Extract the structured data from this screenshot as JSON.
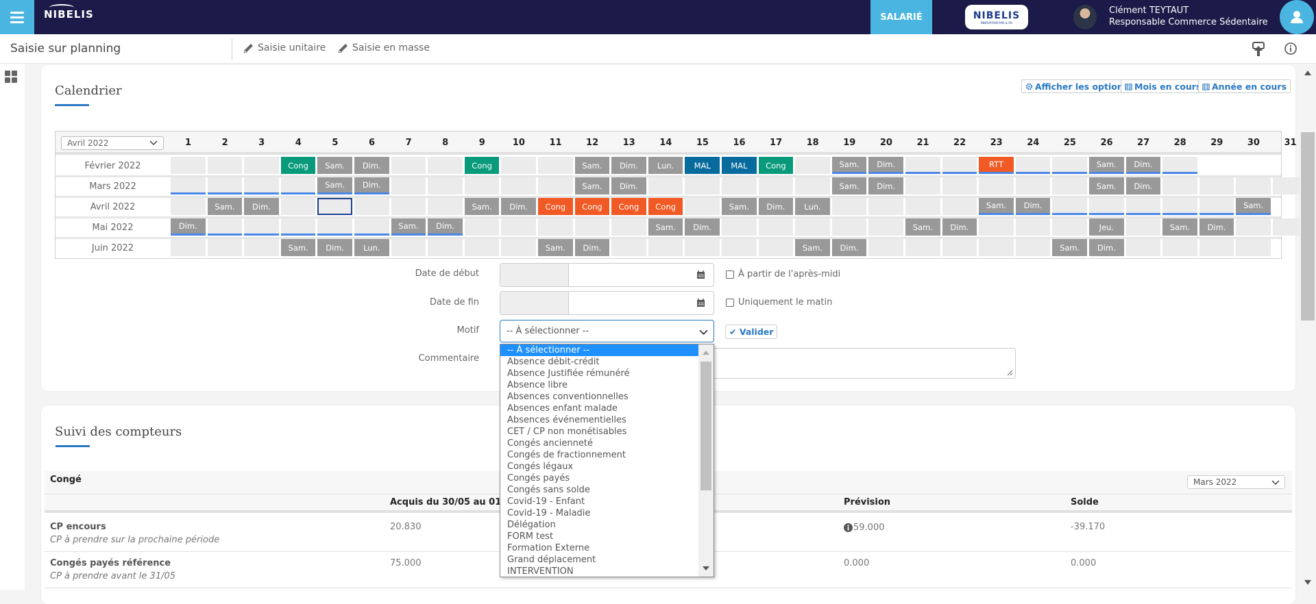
{
  "header": {
    "logo": "NIBELIS",
    "role_button": "SALARIÉ",
    "brand_logo": "NIBELIS",
    "brand_tagline": "INNOVATION PAIE & RH",
    "user_name": "Clément TEYTAUT",
    "user_title": "Responsable Commerce Sédentaire"
  },
  "subbar": {
    "title": "Saisie sur planning",
    "saisie_unitaire": "Saisie unitaire",
    "saisie_masse": "Saisie en masse"
  },
  "calendar": {
    "title": "Calendrier",
    "buttons": {
      "options": "Afficher les options",
      "month": "Mois en cours",
      "year": "Année en cours"
    },
    "month_select": "Avril 2022",
    "days": [
      "1",
      "2",
      "3",
      "4",
      "5",
      "6",
      "7",
      "8",
      "9",
      "10",
      "11",
      "12",
      "13",
      "14",
      "15",
      "16",
      "17",
      "18",
      "19",
      "20",
      "21",
      "22",
      "23",
      "24",
      "25",
      "26",
      "27",
      "28",
      "29",
      "30",
      "31"
    ],
    "colors": {
      "weekend": "#999999",
      "cong_green": "#089a7a",
      "cong_orange": "#f15a24",
      "mal": "#086b9e",
      "underline": "#4a86e8",
      "selected": "#1d3f8f"
    },
    "rows": [
      {
        "label": "Février 2022",
        "days": 28,
        "cells": {
          "4": {
            "t": "Cong",
            "c": "cong-green"
          },
          "5": {
            "t": "Sam.",
            "c": "we"
          },
          "6": {
            "t": "Dim.",
            "c": "we"
          },
          "9": {
            "t": "Cong",
            "c": "cong-green"
          },
          "12": {
            "t": "Sam.",
            "c": "we"
          },
          "13": {
            "t": "Dim.",
            "c": "we"
          },
          "14": {
            "t": "Lun.",
            "c": "we"
          },
          "15": {
            "t": "MAL",
            "c": "mal"
          },
          "16": {
            "t": "MAL",
            "c": "mal"
          },
          "17": {
            "t": "Cong",
            "c": "cong-green"
          },
          "19": {
            "t": "Sam.",
            "c": "we"
          },
          "20": {
            "t": "Dim.",
            "c": "we"
          },
          "23": {
            "t": "RTT",
            "c": "cong-orange"
          },
          "26": {
            "t": "Sam.",
            "c": "we"
          },
          "27": {
            "t": "Dim.",
            "c": "we"
          }
        },
        "underlined": [
          19,
          20,
          21,
          22,
          23,
          24,
          25,
          26,
          27,
          28
        ]
      },
      {
        "label": "Mars 2022",
        "days": 31,
        "cells": {
          "5": {
            "t": "Sam.",
            "c": "we"
          },
          "6": {
            "t": "Dim.",
            "c": "we"
          },
          "12": {
            "t": "Sam.",
            "c": "we"
          },
          "13": {
            "t": "Dim.",
            "c": "we"
          },
          "19": {
            "t": "Sam.",
            "c": "we"
          },
          "20": {
            "t": "Dim.",
            "c": "we"
          },
          "26": {
            "t": "Sam.",
            "c": "we"
          },
          "27": {
            "t": "Dim.",
            "c": "we"
          }
        },
        "underlined": [
          1,
          2,
          3,
          4,
          5,
          6
        ]
      },
      {
        "label": "Avril 2022",
        "days": 30,
        "cells": {
          "2": {
            "t": "Sam.",
            "c": "we"
          },
          "3": {
            "t": "Dim.",
            "c": "we"
          },
          "5": {
            "t": "",
            "c": "sel"
          },
          "9": {
            "t": "Sam.",
            "c": "we"
          },
          "10": {
            "t": "Dim.",
            "c": "we"
          },
          "11": {
            "t": "Cong",
            "c": "cong-orange"
          },
          "12": {
            "t": "Cong",
            "c": "cong-orange"
          },
          "13": {
            "t": "Cong",
            "c": "cong-orange"
          },
          "14": {
            "t": "Cong",
            "c": "cong-orange"
          },
          "16": {
            "t": "Sam.",
            "c": "we"
          },
          "17": {
            "t": "Dim.",
            "c": "we"
          },
          "18": {
            "t": "Lun.",
            "c": "we"
          },
          "23": {
            "t": "Sam.",
            "c": "we"
          },
          "24": {
            "t": "Dim.",
            "c": "we"
          },
          "30": {
            "t": "Sam.",
            "c": "we"
          }
        },
        "underlined": [
          23,
          24,
          25,
          26,
          27,
          28,
          29,
          30
        ]
      },
      {
        "label": "Mai 2022",
        "days": 31,
        "cells": {
          "1": {
            "t": "Dim.",
            "c": "we"
          },
          "7": {
            "t": "Sam.",
            "c": "we"
          },
          "8": {
            "t": "Dim.",
            "c": "we"
          },
          "14": {
            "t": "Sam.",
            "c": "we"
          },
          "15": {
            "t": "Dim.",
            "c": "we"
          },
          "21": {
            "t": "Sam.",
            "c": "we"
          },
          "22": {
            "t": "Dim.",
            "c": "we"
          },
          "26": {
            "t": "Jeu.",
            "c": "we"
          },
          "28": {
            "t": "Sam.",
            "c": "we"
          },
          "29": {
            "t": "Dim.",
            "c": "we"
          }
        },
        "underlined": [
          1,
          2,
          3,
          4,
          5,
          6,
          7,
          8
        ]
      },
      {
        "label": "Juin 2022",
        "days": 30,
        "cells": {
          "4": {
            "t": "Sam.",
            "c": "we"
          },
          "5": {
            "t": "Dim.",
            "c": "we"
          },
          "6": {
            "t": "Lun.",
            "c": "we"
          },
          "11": {
            "t": "Sam.",
            "c": "we"
          },
          "12": {
            "t": "Dim.",
            "c": "we"
          },
          "18": {
            "t": "Sam.",
            "c": "we"
          },
          "19": {
            "t": "Dim.",
            "c": "we"
          },
          "25": {
            "t": "Sam.",
            "c": "we"
          },
          "26": {
            "t": "Dim.",
            "c": "we"
          }
        },
        "underlined": []
      }
    ]
  },
  "form": {
    "date_debut_label": "Date de début",
    "date_fin_label": "Date de fin",
    "motif_label": "Motif",
    "commentaire_label": "Commentaire",
    "apres_midi_label": "À partir de l'après-midi",
    "matin_label": "Uniquement le matin",
    "motif_value": "-- À sélectionner --",
    "valider_label": "Valider",
    "motif_options": [
      "-- À sélectionner --",
      "Absence débit-crédit",
      "Absence Justifiée rémunéré",
      "Absence libre",
      "Absences conventionnelles",
      "Absences enfant malade",
      "Absences événementielles",
      "CET / CP non monétisables",
      "Congés ancienneté",
      "Congés de fractionnement",
      "Congés légaux",
      "Congés payés",
      "Congés sans solde",
      "Covid-19 - Enfant",
      "Covid-19 - Maladie",
      "Délégation",
      "FORM test",
      "Formation Externe",
      "Grand déplacement",
      "INTERVENTION"
    ]
  },
  "counters": {
    "title": "Suivi des compteurs",
    "group": "Congé",
    "period_select": "Mars 2022",
    "columns": {
      "acquis": "Acquis du 30/05 au 01/06",
      "prevision": "Prévision",
      "solde": "Solde"
    },
    "rows": [
      {
        "name": "CP encours",
        "desc": "CP à prendre sur la prochaine période",
        "acquis": "20.830",
        "prevision": "59.000",
        "solde": "-39.170"
      },
      {
        "name": "Congés payés référence",
        "desc": "CP à prendre avant le 31/05",
        "acquis": "75.000",
        "prevision": "0.000",
        "solde": "0.000"
      }
    ]
  }
}
